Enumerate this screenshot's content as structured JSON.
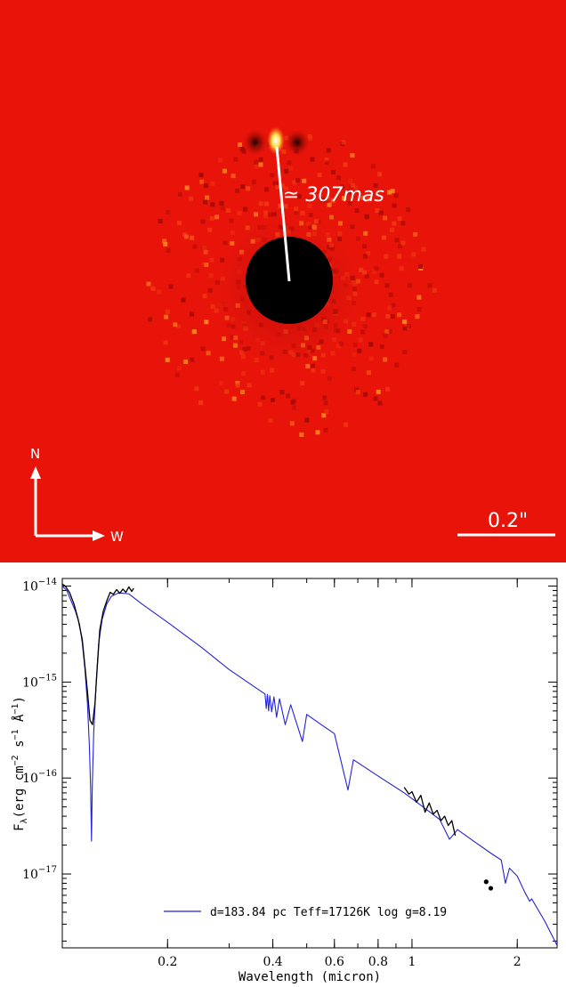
{
  "image_panel": {
    "separation_label": "≃ 307mas",
    "compass_north": "N",
    "compass_west": "W",
    "scale_bar_label": "0.2\"",
    "background_color": "#e8140a",
    "companion_color": "#ffe04a",
    "mask_color": "#000000"
  },
  "chart_data": {
    "type": "line",
    "xscale": "log",
    "yscale": "log",
    "xlim": [
      0.1,
      2.6
    ],
    "ylim": [
      1.7e-18,
      1.2e-14
    ],
    "xlabel": "Wavelength (micron)",
    "ylabel": "F_λ(erg cm⁻² s⁻¹ Å⁻¹)",
    "ylabel_main": "F",
    "ylabel_sub": "λ",
    "ylabel_rest": "(erg cm",
    "ylabel_sup1": "−2",
    "ylabel_mid": " s",
    "ylabel_sup2": "−1",
    "ylabel_mid2": " Å",
    "ylabel_sup3": "−1",
    "ylabel_end": ")",
    "x_ticks": [
      {
        "value": 0.2,
        "label": "0.2"
      },
      {
        "value": 0.4,
        "label": "0.4"
      },
      {
        "value": 0.6,
        "label": "0.6"
      },
      {
        "value": 0.8,
        "label": "0.8"
      },
      {
        "value": 1,
        "label": "1"
      },
      {
        "value": 2,
        "label": "2"
      }
    ],
    "y_ticks": [
      {
        "value": 1e-14,
        "base": "10",
        "exp": "−14"
      },
      {
        "value": 1e-15,
        "base": "10",
        "exp": "−15"
      },
      {
        "value": 1e-16,
        "base": "10",
        "exp": "−16"
      },
      {
        "value": 1e-17,
        "base": "10",
        "exp": "−17"
      }
    ],
    "legend": {
      "label": "d=183.84 pc Teff=17126K log g=8.19",
      "color": "#2222dd",
      "placement": "bottom-center"
    },
    "series": [
      {
        "color": "#2222dd",
        "points": [
          [
            0.1,
            1e-14
          ],
          [
            0.103,
            9e-15
          ],
          [
            0.106,
            7e-15
          ],
          [
            0.109,
            5.5e-15
          ],
          [
            0.112,
            4e-15
          ],
          [
            0.114,
            2.6e-15
          ],
          [
            0.116,
            1.4e-15
          ],
          [
            0.118,
            6e-16
          ],
          [
            0.1195,
            2.2e-16
          ],
          [
            0.1205,
            8e-17
          ],
          [
            0.1212,
            2.2e-17
          ],
          [
            0.1218,
            8e-17
          ],
          [
            0.123,
            3e-16
          ],
          [
            0.125,
            1e-15
          ],
          [
            0.127,
            2.5e-15
          ],
          [
            0.13,
            4.5e-15
          ],
          [
            0.134,
            6.5e-15
          ],
          [
            0.138,
            7.8e-15
          ],
          [
            0.145,
            8.5e-15
          ],
          [
            0.155,
            8.3e-15
          ],
          [
            0.17,
            6.4e-15
          ],
          [
            0.2,
            4.2e-15
          ],
          [
            0.25,
            2.3e-15
          ],
          [
            0.3,
            1.35e-15
          ],
          [
            0.35,
            9.2e-16
          ],
          [
            0.38,
            7.5e-16
          ],
          [
            0.383,
            5.3e-16
          ],
          [
            0.386,
            7.4e-16
          ],
          [
            0.389,
            5e-16
          ],
          [
            0.392,
            7.2e-16
          ],
          [
            0.397,
            4.9e-16
          ],
          [
            0.403,
            7e-16
          ],
          [
            0.41,
            4.3e-16
          ],
          [
            0.418,
            6.7e-16
          ],
          [
            0.434,
            3.6e-16
          ],
          [
            0.45,
            5.8e-16
          ],
          [
            0.486,
            2.4e-16
          ],
          [
            0.5,
            4.6e-16
          ],
          [
            0.55,
            3.6e-16
          ],
          [
            0.6,
            2.9e-16
          ],
          [
            0.656,
            7.5e-17
          ],
          [
            0.68,
            1.55e-16
          ],
          [
            0.8,
            1.05e-16
          ],
          [
            0.95,
            7e-17
          ],
          [
            1.0,
            6.1e-17
          ],
          [
            1.1,
            4.7e-17
          ],
          [
            1.2,
            3.7e-17
          ],
          [
            1.28,
            2.3e-17
          ],
          [
            1.35,
            2.9e-17
          ],
          [
            1.5,
            2.2e-17
          ],
          [
            1.7,
            1.6e-17
          ],
          [
            1.8,
            1.4e-17
          ],
          [
            1.85,
            8e-18
          ],
          [
            1.9,
            1.15e-17
          ],
          [
            2.0,
            9.5e-18
          ],
          [
            2.1,
            6.5e-18
          ],
          [
            2.17,
            5.2e-18
          ],
          [
            2.2,
            5.5e-18
          ],
          [
            2.4,
            3.2e-18
          ],
          [
            2.6,
            1.8e-18
          ]
        ]
      },
      {
        "color": "#000000",
        "points": [
          [
            0.1,
            1.05e-14
          ],
          [
            0.102,
            1e-14
          ],
          [
            0.105,
            8.5e-15
          ],
          [
            0.108,
            6.5e-15
          ],
          [
            0.111,
            4.5e-15
          ],
          [
            0.114,
            2.8e-15
          ],
          [
            0.116,
            1.5e-15
          ],
          [
            0.118,
            8e-16
          ],
          [
            0.12,
            4e-16
          ],
          [
            0.122,
            3.6e-16
          ],
          [
            0.124,
            6e-16
          ],
          [
            0.126,
            1.5e-15
          ],
          [
            0.128,
            3.5e-15
          ],
          [
            0.131,
            5.5e-15
          ],
          [
            0.134,
            7e-15
          ],
          [
            0.137,
            8.6e-15
          ],
          [
            0.14,
            8.2e-15
          ],
          [
            0.143,
            9.2e-15
          ],
          [
            0.146,
            8.4e-15
          ],
          [
            0.149,
            9.3e-15
          ],
          [
            0.152,
            8.6e-15
          ],
          [
            0.155,
            9.8e-15
          ],
          [
            0.158,
            8.8e-15
          ],
          [
            0.16,
            9.5e-15
          ]
        ]
      },
      {
        "color": "#000000",
        "points": [
          [
            0.95,
            8e-17
          ],
          [
            0.98,
            6.8e-17
          ],
          [
            1.0,
            7.2e-17
          ],
          [
            1.03,
            5.6e-17
          ],
          [
            1.06,
            6.6e-17
          ],
          [
            1.09,
            4.4e-17
          ],
          [
            1.12,
            5.5e-17
          ],
          [
            1.15,
            4.2e-17
          ],
          [
            1.18,
            4.6e-17
          ],
          [
            1.21,
            3.6e-17
          ],
          [
            1.24,
            4e-17
          ],
          [
            1.27,
            3.2e-17
          ],
          [
            1.3,
            3.6e-17
          ],
          [
            1.33,
            2.5e-17
          ]
        ]
      }
    ],
    "markers": [
      {
        "x": 1.63,
        "y": 8.3e-18
      },
      {
        "x": 1.68,
        "y": 7.1e-18
      }
    ]
  }
}
